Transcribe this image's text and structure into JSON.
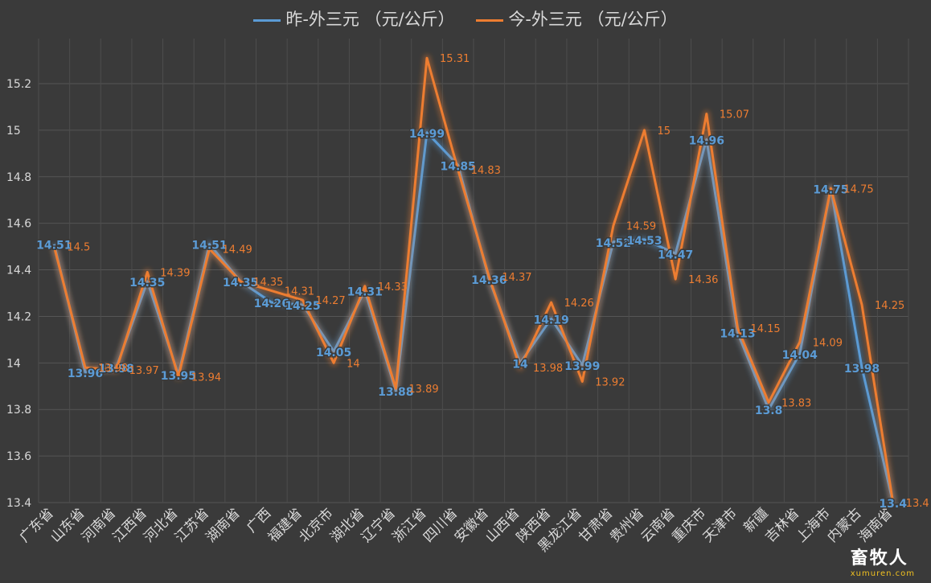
{
  "chart_data": {
    "type": "line",
    "categories": [
      "广东省",
      "山东省",
      "河南省",
      "江西省",
      "河北省",
      "江苏省",
      "湖南省",
      "广西",
      "福建省",
      "北京市",
      "湖北省",
      "辽宁省",
      "浙江省",
      "四川省",
      "安徽省",
      "山西省",
      "陕西省",
      "黑龙江省",
      "甘肃省",
      "贵州省",
      "云南省",
      "重庆市",
      "天津市",
      "新疆",
      "吉林省",
      "上海市",
      "内蒙古",
      "海南省"
    ],
    "series": [
      {
        "name": "昨-外三元  （元/公斤）",
        "color": "#5b9bd5",
        "values": [
          14.51,
          13.96,
          13.98,
          14.35,
          13.95,
          14.51,
          14.35,
          14.26,
          14.25,
          14.05,
          14.31,
          13.88,
          14.99,
          14.85,
          14.36,
          14,
          14.19,
          13.99,
          14.52,
          14.53,
          14.47,
          14.96,
          14.13,
          13.8,
          14.04,
          14.75,
          13.98,
          13.4
        ]
      },
      {
        "name": "今-外三元  （元/公斤）",
        "color": "#ed7d31",
        "values": [
          14.5,
          13.98,
          13.97,
          14.39,
          13.94,
          14.49,
          14.35,
          14.31,
          14.27,
          14,
          14.33,
          13.89,
          15.31,
          14.83,
          14.37,
          13.98,
          14.26,
          13.92,
          14.59,
          15,
          14.36,
          15.07,
          14.15,
          13.83,
          14.09,
          14.75,
          14.25,
          13.4
        ]
      }
    ],
    "yticks": [
      "13.4",
      "13.6",
      "13.8",
      "14",
      "14.2",
      "14.4",
      "14.6",
      "14.8",
      "15",
      "15.2"
    ],
    "ylim": [
      13.4,
      15.35
    ],
    "grid": true,
    "legend": "top"
  },
  "watermark": {
    "title": "畜牧人",
    "url": "xumuren.com"
  }
}
